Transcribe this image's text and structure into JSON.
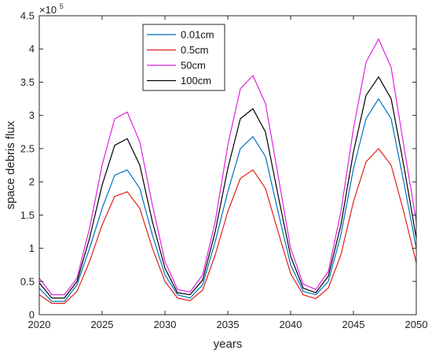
{
  "chart_data": {
    "type": "line",
    "xlabel": "years",
    "ylabel": "space debris flux",
    "xlim": [
      2020,
      2050
    ],
    "ylim": [
      0,
      450000
    ],
    "y_exponent_label": {
      "base": "×10",
      "exp": "5"
    },
    "grid": false,
    "legend_position": "top-center",
    "x": [
      2020,
      2021,
      2022,
      2023,
      2024,
      2025,
      2026,
      2027,
      2028,
      2029,
      2030,
      2031,
      2032,
      2033,
      2034,
      2035,
      2036,
      2037,
      2038,
      2039,
      2040,
      2041,
      2042,
      2043,
      2044,
      2045,
      2046,
      2047,
      2048,
      2049,
      2050
    ],
    "x_ticks": [
      2020,
      2025,
      2030,
      2035,
      2040,
      2045,
      2050
    ],
    "x_tick_labels": [
      "2020",
      "2025",
      "2030",
      "2035",
      "2040",
      "2045",
      "2050"
    ],
    "y_ticks": [
      0,
      50000,
      100000,
      150000,
      200000,
      250000,
      300000,
      350000,
      400000,
      450000
    ],
    "y_tick_labels": [
      "0",
      "0.5",
      "1",
      "1.5",
      "2",
      "2.5",
      "3",
      "3.5",
      "4",
      "4.5"
    ],
    "series": [
      {
        "name": "0.01cm",
        "color": "#0072bd",
        "values": [
          40000,
          20000,
          20000,
          45000,
          100000,
          160000,
          210000,
          218000,
          190000,
          120000,
          60000,
          30000,
          25000,
          45000,
          110000,
          185000,
          250000,
          268000,
          238000,
          155000,
          75000,
          35000,
          30000,
          50000,
          120000,
          220000,
          295000,
          325000,
          295000,
          200000,
          100000
        ]
      },
      {
        "name": "0.5cm",
        "color": "#e0201b",
        "values": [
          30000,
          17000,
          17000,
          35000,
          80000,
          135000,
          178000,
          185000,
          160000,
          100000,
          50000,
          25000,
          21000,
          37000,
          90000,
          155000,
          205000,
          218000,
          190000,
          125000,
          62000,
          30000,
          24000,
          40000,
          90000,
          170000,
          230000,
          250000,
          225000,
          155000,
          78000
        ]
      },
      {
        "name": "50cm",
        "color": "#e020e0",
        "values": [
          55000,
          30000,
          30000,
          55000,
          130000,
          225000,
          295000,
          305000,
          260000,
          165000,
          80000,
          38000,
          34000,
          60000,
          140000,
          255000,
          340000,
          360000,
          318000,
          210000,
          100000,
          46000,
          38000,
          65000,
          155000,
          280000,
          380000,
          415000,
          372000,
          255000,
          140000
        ]
      },
      {
        "name": "100cm",
        "color": "#000000",
        "values": [
          48000,
          25000,
          25000,
          50000,
          115000,
          195000,
          255000,
          265000,
          225000,
          140000,
          70000,
          33000,
          30000,
          52000,
          125000,
          220000,
          295000,
          310000,
          275000,
          180000,
          88000,
          40000,
          33000,
          58000,
          135000,
          245000,
          330000,
          358000,
          325000,
          225000,
          115000
        ]
      }
    ]
  }
}
